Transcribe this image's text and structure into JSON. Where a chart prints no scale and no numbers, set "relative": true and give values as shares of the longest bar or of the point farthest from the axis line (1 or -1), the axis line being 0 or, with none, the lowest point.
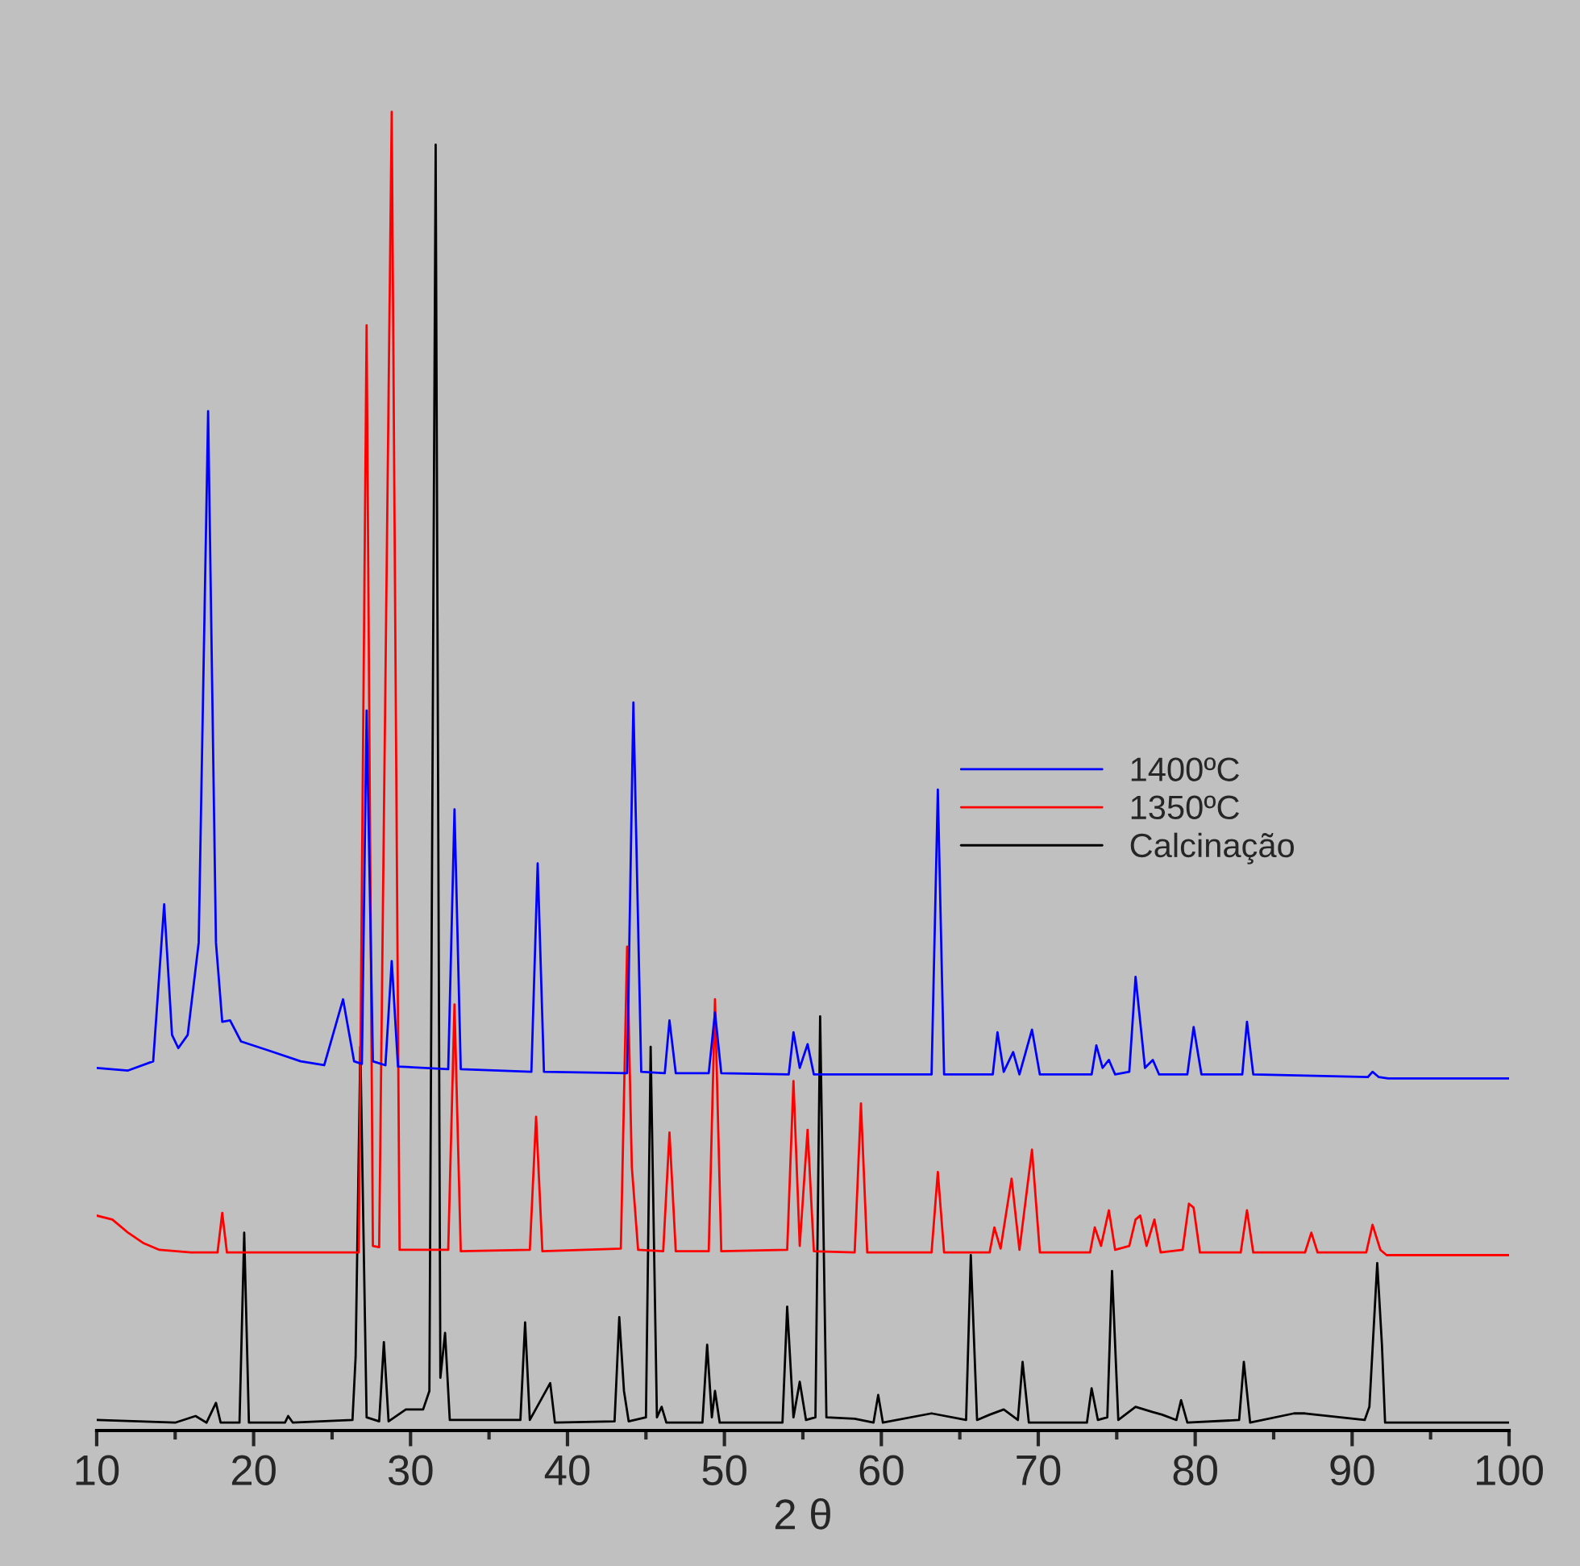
{
  "chart_data": {
    "type": "line",
    "relative": true,
    "xlabel": "2 θ",
    "xlim": [
      10,
      100
    ],
    "xticks": [
      10,
      20,
      30,
      40,
      50,
      60,
      70,
      80,
      90,
      100
    ],
    "legend": "right",
    "grid": false,
    "tick_labels": "x",
    "series": [
      {
        "name": "1400ºC",
        "color": "#0000ff",
        "x": [
          10,
          12,
          13.6,
          14.3,
          14.8,
          15.2,
          15.8,
          16.5,
          17.1,
          17.6,
          18.0,
          18.5,
          19.2,
          21,
          23,
          24.5,
          25.7,
          26.4,
          26.9,
          27.2,
          27.6,
          28.4,
          28.8,
          29.2,
          32.4,
          32.8,
          33.2,
          37.7,
          38.1,
          38.5,
          43.8,
          44.2,
          44.7,
          46.2,
          46.5,
          46.9,
          49.0,
          49.4,
          49.8,
          54.1,
          54.4,
          54.8,
          55.3,
          55.7,
          63.2,
          63.6,
          64.0,
          67.1,
          67.4,
          67.8,
          68.4,
          68.8,
          69.6,
          70.1,
          73.4,
          73.7,
          74.1,
          74.5,
          74.9,
          75.8,
          76.2,
          76.8,
          77.3,
          77.7,
          79.5,
          79.9,
          80.4,
          83.0,
          83.3,
          83.7,
          91.0,
          91.3,
          91.7,
          92.3,
          100
        ],
        "values": [
          0.275,
          0.273,
          0.28,
          0.399,
          0.3,
          0.29,
          0.3,
          0.37,
          0.773,
          0.37,
          0.31,
          0.311,
          0.295,
          0.288,
          0.28,
          0.277,
          0.327,
          0.28,
          0.278,
          0.546,
          0.28,
          0.277,
          0.356,
          0.276,
          0.274,
          0.471,
          0.274,
          0.272,
          0.43,
          0.272,
          0.271,
          0.552,
          0.272,
          0.271,
          0.311,
          0.271,
          0.271,
          0.317,
          0.271,
          0.27,
          0.302,
          0.275,
          0.293,
          0.27,
          0.27,
          0.486,
          0.27,
          0.27,
          0.302,
          0.272,
          0.287,
          0.27,
          0.304,
          0.27,
          0.27,
          0.292,
          0.275,
          0.281,
          0.27,
          0.272,
          0.344,
          0.275,
          0.281,
          0.27,
          0.27,
          0.306,
          0.27,
          0.27,
          0.31,
          0.27,
          0.268,
          0.272,
          0.268,
          0.267,
          0.267
        ]
      },
      {
        "name": "1350ºC",
        "color": "#ff0000",
        "x": [
          10,
          11,
          12,
          13,
          14,
          16,
          17.7,
          18.0,
          18.3,
          26.7,
          27.2,
          27.6,
          28.0,
          28.8,
          29.3,
          32.4,
          32.8,
          33.2,
          37.6,
          38.0,
          38.4,
          43.4,
          43.8,
          44.1,
          44.5,
          46.1,
          46.5,
          46.9,
          49.0,
          49.4,
          49.8,
          54.0,
          54.4,
          54.8,
          55.3,
          55.7,
          58.3,
          58.7,
          59.1,
          63.2,
          63.6,
          64.0,
          66.9,
          67.2,
          67.6,
          68.3,
          68.8,
          69.6,
          70.1,
          73.3,
          73.6,
          74.0,
          74.5,
          74.9,
          75.8,
          76.2,
          76.5,
          76.9,
          77.4,
          77.8,
          79.2,
          79.6,
          79.9,
          80.3,
          82.9,
          83.3,
          83.7,
          87.0,
          87.4,
          87.8,
          90.9,
          91.3,
          91.8,
          92.2,
          100
        ],
        "values": [
          0.163,
          0.16,
          0.15,
          0.142,
          0.137,
          0.135,
          0.135,
          0.165,
          0.135,
          0.135,
          0.838,
          0.14,
          0.139,
          1.0,
          0.137,
          0.137,
          0.323,
          0.136,
          0.137,
          0.238,
          0.136,
          0.138,
          0.367,
          0.2,
          0.137,
          0.136,
          0.226,
          0.136,
          0.136,
          0.327,
          0.136,
          0.137,
          0.265,
          0.14,
          0.228,
          0.136,
          0.135,
          0.248,
          0.135,
          0.135,
          0.196,
          0.135,
          0.135,
          0.154,
          0.138,
          0.191,
          0.137,
          0.213,
          0.135,
          0.135,
          0.154,
          0.14,
          0.167,
          0.137,
          0.14,
          0.16,
          0.163,
          0.14,
          0.16,
          0.135,
          0.137,
          0.172,
          0.169,
          0.135,
          0.135,
          0.167,
          0.135,
          0.135,
          0.15,
          0.135,
          0.135,
          0.156,
          0.137,
          0.133,
          0.133
        ]
      },
      {
        "name": "Calcinação",
        "color": "#000000",
        "x": [
          10,
          15,
          16.3,
          17.0,
          17.6,
          17.9,
          19.1,
          19.4,
          19.7,
          22.0,
          22.2,
          22.5,
          26.3,
          26.5,
          26.8,
          27.2,
          28.0,
          28.3,
          28.6,
          29.7,
          30.8,
          31.2,
          31.6,
          31.9,
          32.2,
          32.5,
          37.0,
          37.3,
          37.6,
          38.9,
          39.2,
          43.0,
          43.3,
          43.6,
          43.9,
          45.0,
          45.3,
          45.7,
          46.0,
          46.3,
          48.6,
          48.9,
          49.2,
          49.4,
          49.7,
          53.7,
          54.0,
          54.4,
          54.8,
          55.2,
          55.8,
          56.1,
          56.5,
          58.3,
          59.5,
          59.8,
          60.1,
          63.2,
          65.4,
          65.7,
          66.1,
          66.9,
          67.8,
          68.7,
          69.0,
          69.4,
          73.1,
          73.4,
          73.8,
          74.4,
          74.7,
          75.1,
          76.2,
          77.3,
          77.9,
          78.8,
          79.1,
          79.5,
          82.8,
          83.1,
          83.5,
          86.3,
          87.0,
          90.8,
          91.1,
          91.6,
          91.9,
          92.1,
          100
        ],
        "values": [
          0.008,
          0.006,
          0.011,
          0.006,
          0.021,
          0.006,
          0.006,
          0.15,
          0.006,
          0.006,
          0.011,
          0.006,
          0.008,
          0.056,
          0.291,
          0.01,
          0.007,
          0.067,
          0.007,
          0.016,
          0.016,
          0.03,
          0.975,
          0.04,
          0.074,
          0.008,
          0.008,
          0.082,
          0.008,
          0.036,
          0.006,
          0.007,
          0.086,
          0.03,
          0.007,
          0.01,
          0.291,
          0.01,
          0.018,
          0.006,
          0.006,
          0.065,
          0.01,
          0.03,
          0.006,
          0.006,
          0.094,
          0.01,
          0.037,
          0.008,
          0.01,
          0.314,
          0.01,
          0.009,
          0.006,
          0.027,
          0.006,
          0.013,
          0.008,
          0.133,
          0.008,
          0.012,
          0.016,
          0.008,
          0.052,
          0.006,
          0.006,
          0.032,
          0.008,
          0.01,
          0.121,
          0.008,
          0.018,
          0.014,
          0.012,
          0.008,
          0.023,
          0.006,
          0.008,
          0.052,
          0.006,
          0.013,
          0.013,
          0.008,
          0.018,
          0.127,
          0.065,
          0.006,
          0.006
        ]
      }
    ]
  }
}
